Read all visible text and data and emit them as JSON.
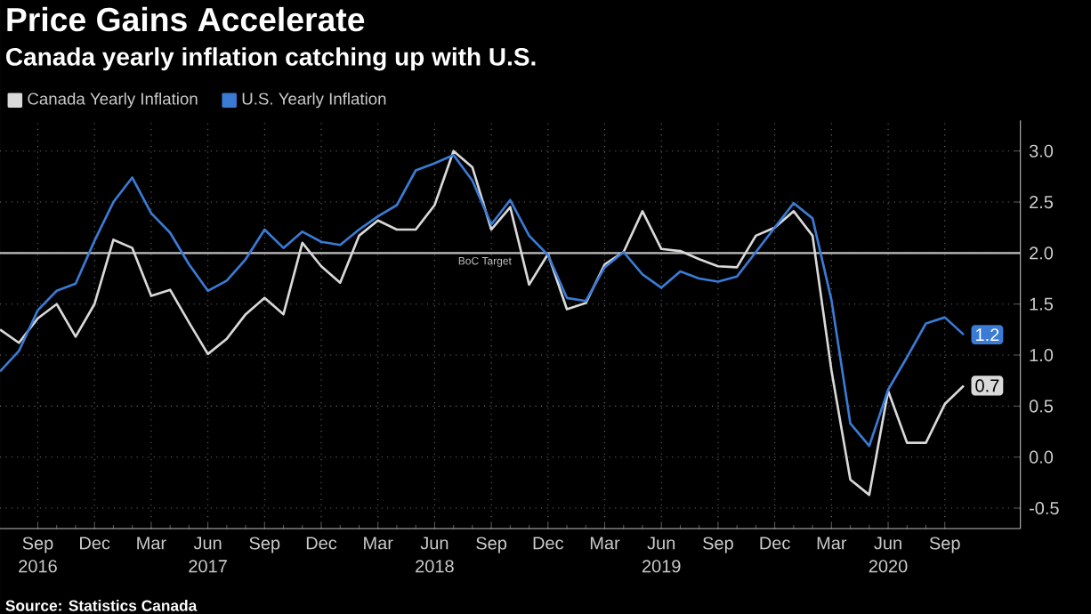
{
  "chart_data": {
    "type": "line",
    "title": "Price Gains Accelerate",
    "subtitle": "Canada yearly inflation catching up with U.S.",
    "x": [
      "2016-07",
      "2016-08",
      "2016-09",
      "2016-10",
      "2016-11",
      "2016-12",
      "2017-01",
      "2017-02",
      "2017-03",
      "2017-04",
      "2017-05",
      "2017-06",
      "2017-07",
      "2017-08",
      "2017-09",
      "2017-10",
      "2017-11",
      "2017-12",
      "2018-01",
      "2018-02",
      "2018-03",
      "2018-04",
      "2018-05",
      "2018-06",
      "2018-07",
      "2018-08",
      "2018-09",
      "2018-10",
      "2018-11",
      "2018-12",
      "2019-01",
      "2019-02",
      "2019-03",
      "2019-04",
      "2019-05",
      "2019-06",
      "2019-07",
      "2019-08",
      "2019-09",
      "2019-10",
      "2019-11",
      "2019-12",
      "2020-01",
      "2020-02",
      "2020-03",
      "2020-04",
      "2020-05",
      "2020-06",
      "2020-07",
      "2020-08",
      "2020-09",
      "2020-10"
    ],
    "series": [
      {
        "name": "Canada Yearly Inflation",
        "color": "#d9d9d9",
        "values": [
          1.25,
          1.12,
          1.36,
          1.5,
          1.18,
          1.5,
          2.13,
          2.05,
          1.58,
          1.64,
          1.32,
          1.01,
          1.16,
          1.4,
          1.56,
          1.4,
          2.1,
          1.87,
          1.71,
          2.17,
          2.32,
          2.23,
          2.23,
          2.47,
          3.0,
          2.84,
          2.23,
          2.45,
          1.69,
          1.99,
          1.45,
          1.51,
          1.89,
          2.01,
          2.41,
          2.04,
          2.02,
          1.94,
          1.87,
          1.86,
          2.17,
          2.25,
          2.41,
          2.17,
          0.85,
          -0.22,
          -0.37,
          0.65,
          0.14,
          0.14,
          0.52,
          0.7
        ],
        "value_labels": [
          null,
          null,
          null,
          null,
          null,
          null,
          null,
          null,
          null,
          null,
          null,
          null,
          null,
          null,
          null,
          null,
          null,
          null,
          null,
          null,
          null,
          null,
          null,
          null,
          null,
          null,
          null,
          null,
          null,
          null,
          null,
          null,
          null,
          null,
          null,
          null,
          null,
          null,
          null,
          null,
          null,
          null,
          null,
          null,
          null,
          null,
          null,
          null,
          null,
          null,
          null,
          "0.7"
        ]
      },
      {
        "name": "U.S. Yearly Inflation",
        "color": "#3a7bd5",
        "values": [
          0.84,
          1.04,
          1.44,
          1.63,
          1.7,
          2.12,
          2.5,
          2.74,
          2.39,
          2.2,
          1.89,
          1.63,
          1.73,
          1.94,
          2.23,
          2.05,
          2.21,
          2.11,
          2.08,
          2.23,
          2.36,
          2.47,
          2.81,
          2.88,
          2.96,
          2.71,
          2.28,
          2.52,
          2.17,
          1.98,
          1.56,
          1.53,
          1.86,
          2.01,
          1.79,
          1.66,
          1.82,
          1.75,
          1.72,
          1.77,
          2.01,
          2.25,
          2.49,
          2.34,
          1.54,
          0.33,
          0.11,
          0.66,
          0.98,
          1.31,
          1.37,
          1.2
        ],
        "value_labels": [
          null,
          null,
          null,
          null,
          null,
          null,
          null,
          null,
          null,
          null,
          null,
          null,
          null,
          null,
          null,
          null,
          null,
          null,
          null,
          null,
          null,
          null,
          null,
          null,
          null,
          null,
          null,
          null,
          null,
          null,
          null,
          null,
          null,
          null,
          null,
          null,
          null,
          null,
          null,
          null,
          null,
          null,
          null,
          null,
          null,
          null,
          null,
          null,
          null,
          null,
          null,
          "1.2"
        ]
      }
    ],
    "xlim": [
      "2016-07",
      "2021-01"
    ],
    "xticks": [
      {
        "value": "2016-09",
        "label": "Sep"
      },
      {
        "value": "2016-12",
        "label": "Dec"
      },
      {
        "value": "2017-03",
        "label": "Mar"
      },
      {
        "value": "2017-06",
        "label": "Jun"
      },
      {
        "value": "2017-09",
        "label": "Sep"
      },
      {
        "value": "2017-12",
        "label": "Dec"
      },
      {
        "value": "2018-03",
        "label": "Mar"
      },
      {
        "value": "2018-06",
        "label": "Jun"
      },
      {
        "value": "2018-09",
        "label": "Sep"
      },
      {
        "value": "2018-12",
        "label": "Dec"
      },
      {
        "value": "2019-03",
        "label": "Mar"
      },
      {
        "value": "2019-06",
        "label": "Jun"
      },
      {
        "value": "2019-09",
        "label": "Sep"
      },
      {
        "value": "2019-12",
        "label": "Dec"
      },
      {
        "value": "2020-03",
        "label": "Mar"
      },
      {
        "value": "2020-06",
        "label": "Jun"
      },
      {
        "value": "2020-09",
        "label": "Sep"
      }
    ],
    "ylim": [
      -0.7,
      3.3
    ],
    "yticks": [
      -0.5,
      {
        "value": 0,
        "label": "0.0"
      },
      0.5,
      {
        "value": 1,
        "label": "1.0"
      },
      1.5,
      {
        "value": 2,
        "label": "2.0"
      },
      2.5,
      {
        "value": 3,
        "label": "3.0"
      }
    ],
    "ref_lines": [
      {
        "axis": "y",
        "value": 2,
        "label": "BoC Target",
        "color": "#bfbfbf"
      }
    ],
    "annotations": [
      "Source: Statistics Canada",
      "2016",
      "2017",
      "2018",
      "2019",
      "2020"
    ],
    "grid": true,
    "legend": "top left"
  }
}
